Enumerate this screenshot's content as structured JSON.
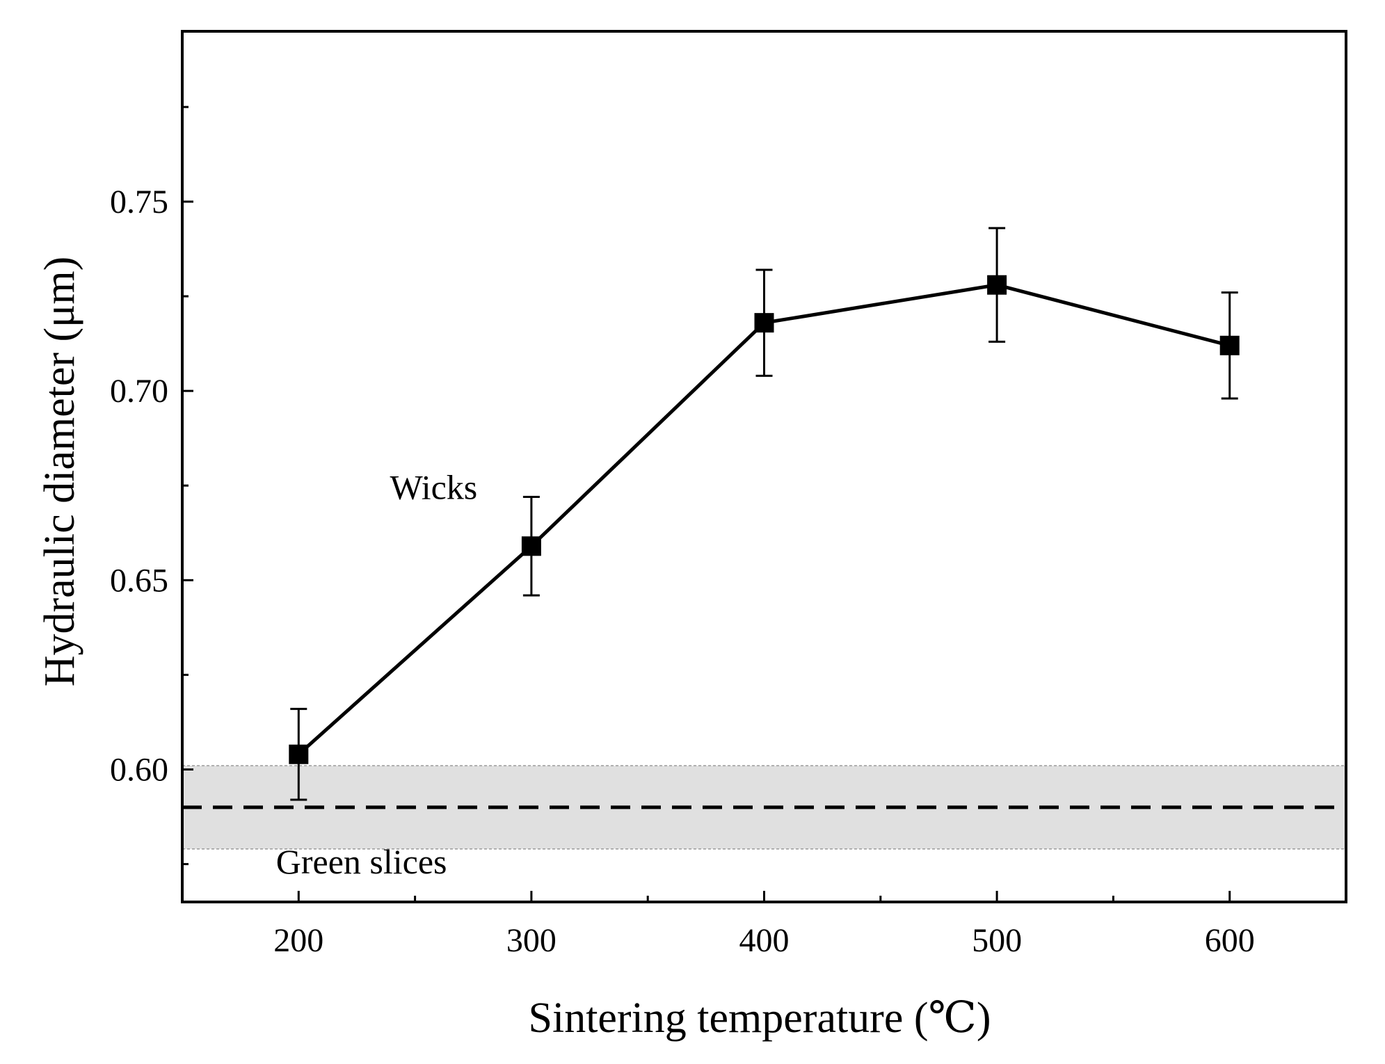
{
  "chart_data": {
    "type": "line",
    "x": [
      200,
      300,
      400,
      500,
      600
    ],
    "series": [
      {
        "values": [
          0.604,
          0.659,
          0.718,
          0.728,
          0.712
        ],
        "error": [
          0.012,
          0.013,
          0.014,
          0.015,
          0.014
        ],
        "marker": "square",
        "color": "#000000"
      }
    ],
    "reference": {
      "value": 0.59,
      "band": [
        0.579,
        0.601
      ],
      "line_style": "dashed",
      "band_color": "#e0e0e0"
    },
    "xlabel": "Sintering temperature (℃)",
    "ylabel": "Hydraulic diameter (μm)",
    "xlim": [
      150,
      650
    ],
    "ylim": [
      0.565,
      0.795
    ],
    "xticks": [
      200,
      300,
      400,
      500,
      600
    ],
    "xtick_labels": [
      "200",
      "300",
      "400",
      "500",
      "600"
    ],
    "xminor": [
      250,
      350,
      450,
      550
    ],
    "yticks": [
      0.6,
      0.65,
      0.7,
      0.75
    ],
    "ytick_labels": [
      "0.60",
      "0.65",
      "0.70",
      "0.75"
    ],
    "yminor": [
      0.575,
      0.625,
      0.675,
      0.725,
      0.775
    ],
    "annotations": [
      {
        "text": "Wicks",
        "x": 258,
        "y": 0.6715
      },
      {
        "text": "Green slices",
        "x": 227,
        "y": 0.5725
      }
    ],
    "grid": false,
    "legend": "none"
  }
}
